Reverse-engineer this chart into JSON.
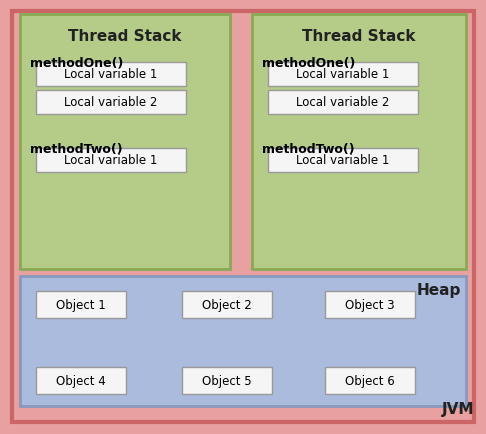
{
  "jvm_bg": "#e8a0a0",
  "jvm_label": "JVM",
  "heap_bg": "#aabbdd",
  "heap_label": "Heap",
  "thread_bg": "#b5cc88",
  "local_var_bg": "#f5f5f5",
  "thread1": {
    "title": "Thread Stack",
    "method1_label": "methodOne()",
    "method1_vars": [
      "Local variable 1",
      "Local variable 2"
    ],
    "method2_label": "methodTwo()",
    "method2_vars": [
      "Local variable 1"
    ]
  },
  "thread2": {
    "title": "Thread Stack",
    "method1_label": "methodOne()",
    "method1_vars": [
      "Local variable 1",
      "Local variable 2"
    ],
    "method2_label": "methodTwo()",
    "method2_vars": [
      "Local variable 1"
    ]
  },
  "heap": {
    "label": "Heap",
    "objects_row1": [
      "Object 1",
      "Object 2",
      "Object 3"
    ],
    "objects_row2": [
      "Object 4",
      "Object 5",
      "Object 6"
    ]
  },
  "jvm_edge": "#cc6666",
  "thread_edge": "#88aa55",
  "heap_edge": "#8899bb",
  "box_edge": "#999999"
}
